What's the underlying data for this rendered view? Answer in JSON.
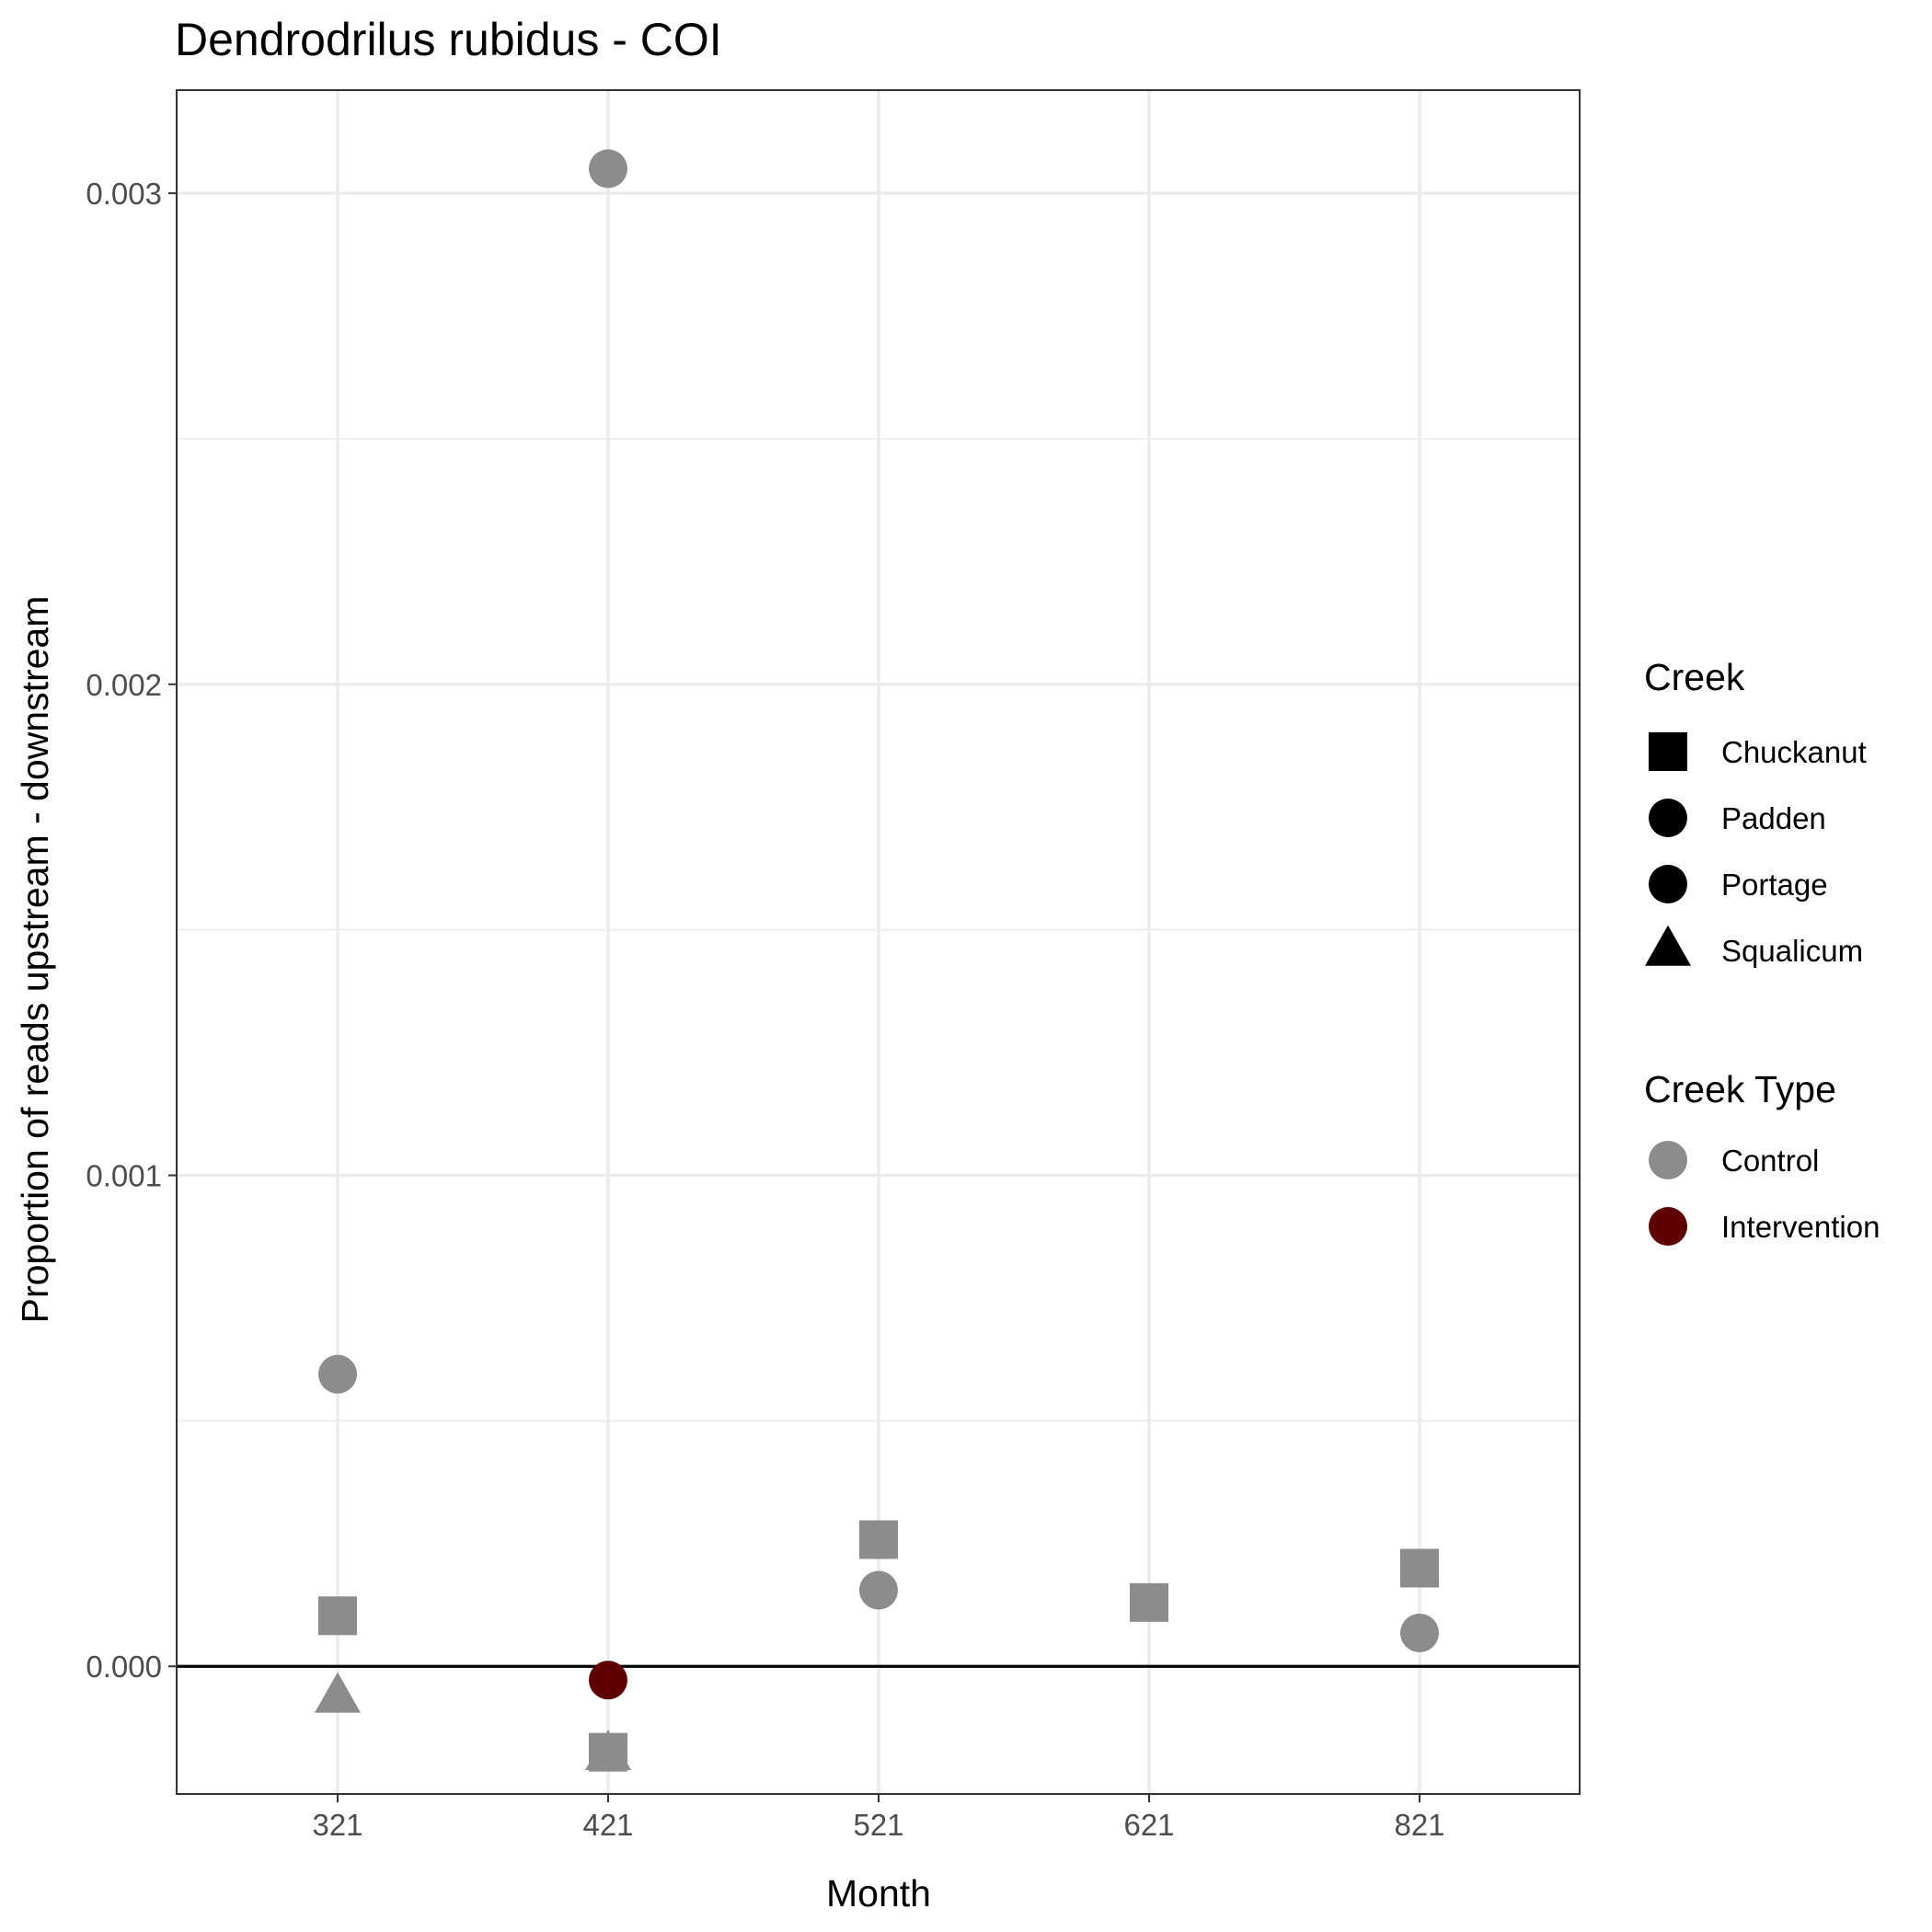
{
  "chart_data": {
    "type": "scatter",
    "title": "Dendrodrilus rubidus - COI",
    "xlabel": "Month",
    "ylabel": "Proportion of reads upstream - downstream",
    "categories": [
      "321",
      "421",
      "521",
      "621",
      "821"
    ],
    "y_ticks": [
      "0.000",
      "0.001",
      "0.002",
      "0.003"
    ],
    "y_tick_values": [
      0,
      0.001,
      0.002,
      0.003
    ],
    "ylim": [
      -0.00026,
      0.00321
    ],
    "grid": true,
    "reference_line_y": 0,
    "legend_position": "right",
    "legends": {
      "shape": {
        "title": "Creek",
        "entries": [
          {
            "label": "Chuckanut",
            "shape": "square"
          },
          {
            "label": "Padden",
            "shape": "circle"
          },
          {
            "label": "Portage",
            "shape": "circle"
          },
          {
            "label": "Squalicum",
            "shape": "triangle"
          }
        ]
      },
      "color": {
        "title": "Creek Type",
        "entries": [
          {
            "label": "Control",
            "color": "#8c8c8c"
          },
          {
            "label": "Intervention",
            "color": "#5c0000"
          }
        ]
      }
    },
    "points": [
      {
        "x": "321",
        "y": 0.000595,
        "creek": "Padden",
        "creek_type": "Control"
      },
      {
        "x": "321",
        "y": 0.000103,
        "creek": "Chuckanut",
        "creek_type": "Control"
      },
      {
        "x": "321",
        "y": -6.3e-05,
        "creek": "Squalicum",
        "creek_type": "Control"
      },
      {
        "x": "421",
        "y": 0.00305,
        "creek": "Padden",
        "creek_type": "Control"
      },
      {
        "x": "421",
        "y": -2.8e-05,
        "creek": "Portage",
        "creek_type": "Intervention"
      },
      {
        "x": "421",
        "y": -0.000175,
        "creek": "Chuckanut",
        "creek_type": "Control"
      },
      {
        "x": "421",
        "y": -0.00018,
        "creek": "Squalicum",
        "creek_type": "Control"
      },
      {
        "x": "521",
        "y": 0.000258,
        "creek": "Chuckanut",
        "creek_type": "Control"
      },
      {
        "x": "521",
        "y": 0.000155,
        "creek": "Padden",
        "creek_type": "Control"
      },
      {
        "x": "621",
        "y": 0.00013,
        "creek": "Chuckanut",
        "creek_type": "Control"
      },
      {
        "x": "821",
        "y": 0.0002,
        "creek": "Chuckanut",
        "creek_type": "Control"
      },
      {
        "x": "821",
        "y": 6.8e-05,
        "creek": "Padden",
        "creek_type": "Control"
      }
    ]
  }
}
